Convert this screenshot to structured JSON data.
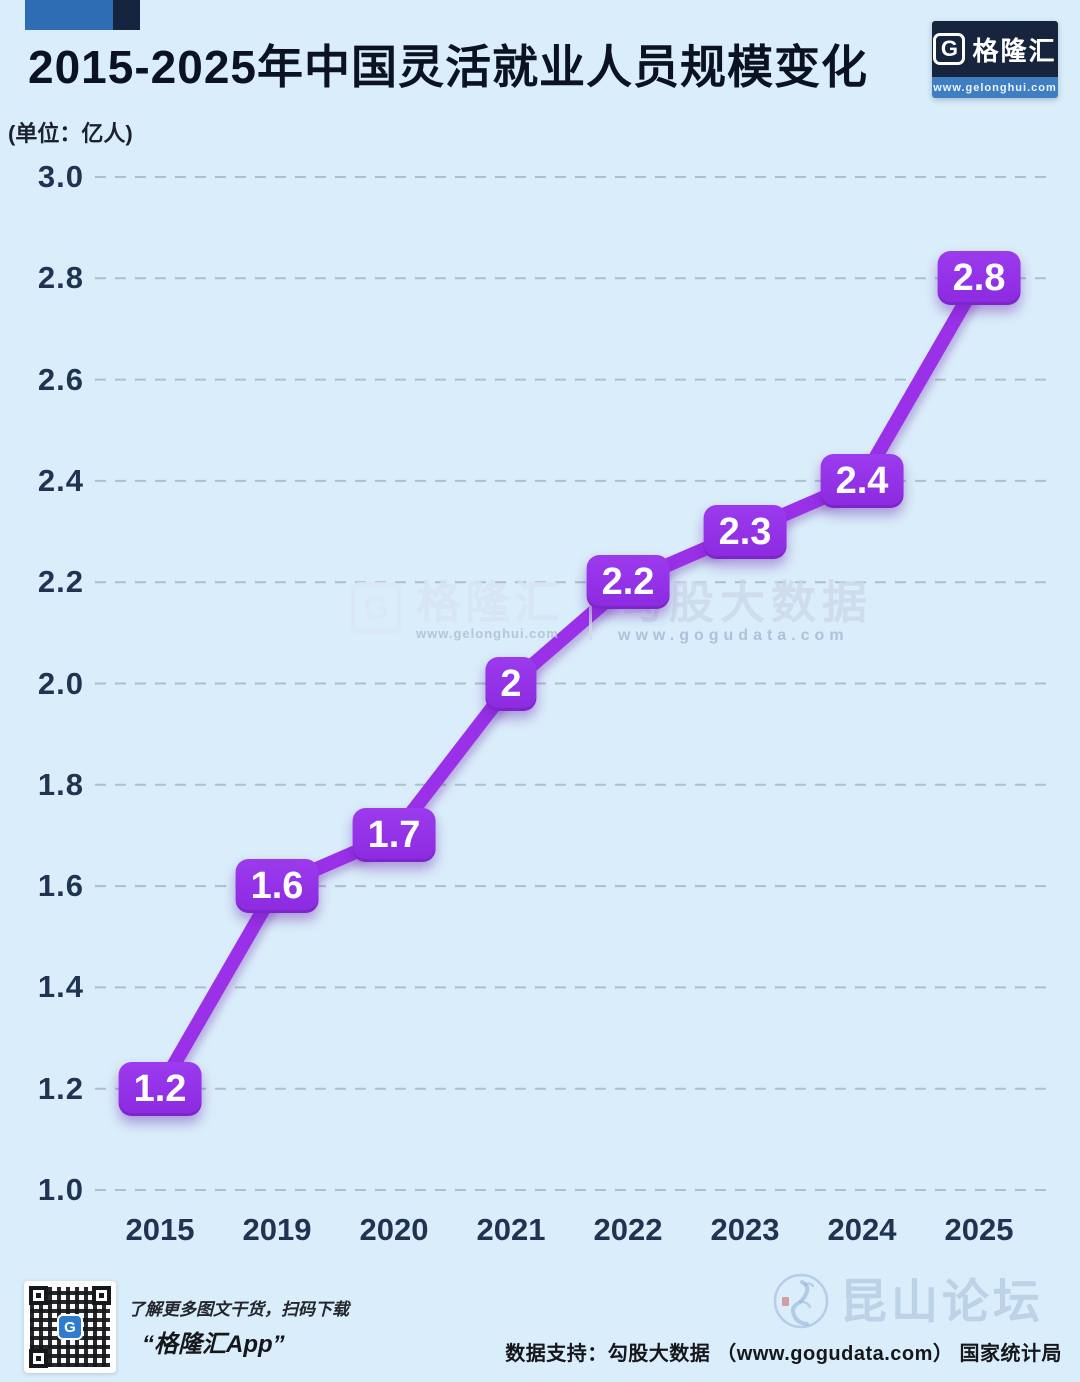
{
  "page": {
    "background": "#daedfa"
  },
  "header": {
    "title": "2015-2025年中国灵活就业人员规模变化",
    "unit_label": "(单位：亿人)",
    "accent_blue": "#2e6db4",
    "accent_navy": "#152540",
    "logo": {
      "letter": "G",
      "name": "格隆汇",
      "url": "www.gelonghui.com"
    }
  },
  "chart_data": {
    "type": "line",
    "title": "2015-2025年中国灵活就业人员规模变化",
    "unit": "亿人",
    "categories": [
      "2015",
      "2019",
      "2020",
      "2021",
      "2022",
      "2023",
      "2024",
      "2025"
    ],
    "series": [
      {
        "name": "中国灵活就业人员规模",
        "values": [
          1.2,
          1.6,
          1.7,
          2,
          2.2,
          2.3,
          2.4,
          2.8
        ],
        "labels": [
          "1.2",
          "1.6",
          "1.7",
          "2",
          "2.2",
          "2.3",
          "2.4",
          "2.8"
        ]
      }
    ],
    "ylim": [
      1.0,
      3.0
    ],
    "ytick_step": 0.2,
    "ytick_labels": [
      "3.0",
      "2.8",
      "2.6",
      "2.4",
      "2.2",
      "2.0",
      "1.8",
      "1.6",
      "1.4",
      "1.2",
      "1.0"
    ],
    "grid": "horizontal-dashed",
    "legend": "none",
    "line_color": "#9a31e8",
    "label_box_color": "#8c2ae0",
    "label_text_color": "#ffffff",
    "grid_color": "#9db0c0",
    "tick_color": "#1e3450"
  },
  "watermark_center": {
    "letter": "G",
    "brand": "格隆汇",
    "brand_url": "www.gelonghui.com",
    "partner": "勾股大数据",
    "partner_url": "www.gogudata.com"
  },
  "footer": {
    "qr_logo_letter": "G",
    "qr_caption_line1": "了解更多图文干货，扫码下载",
    "qr_caption_line2": "“格隆汇App”",
    "site_watermark": "昆山论坛",
    "data_support": "数据支持：勾股大数据 （www.gogudata.com） 国家统计局"
  }
}
